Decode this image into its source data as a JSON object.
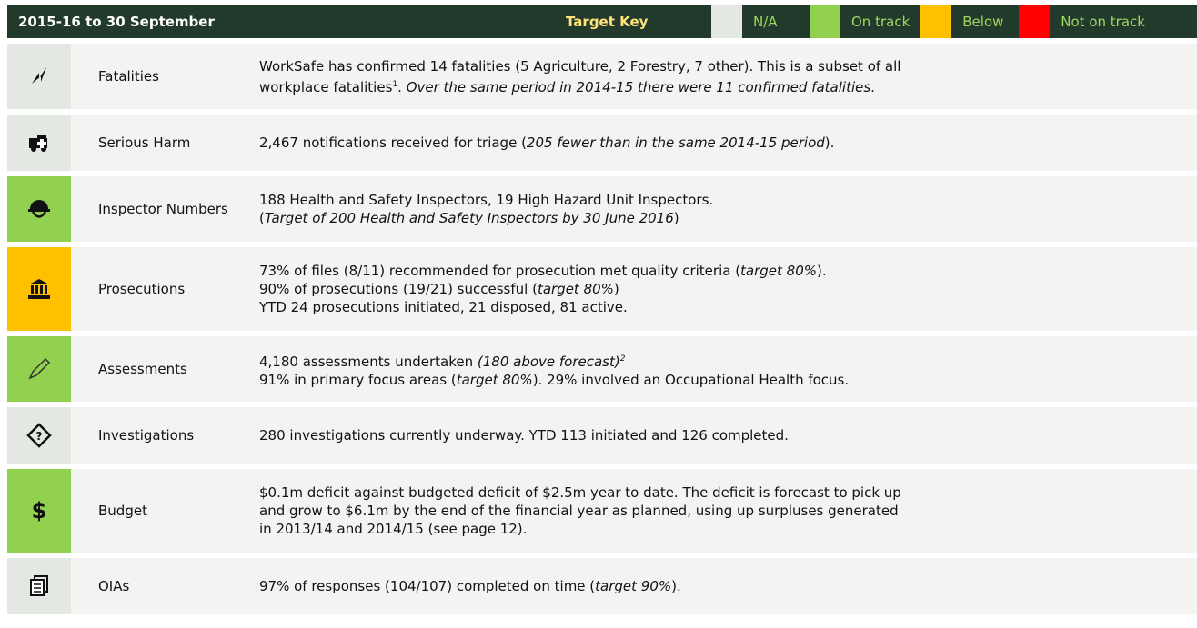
{
  "header": {
    "title": "2015-16 to 30 September",
    "key_label": "Target Key",
    "key": [
      {
        "label": "N/A",
        "color": "#e4e8e2"
      },
      {
        "label": "On track",
        "color": "#92d050"
      },
      {
        "label": "Below",
        "color": "#ffc000"
      },
      {
        "label": "Not on track",
        "color": "#ff0000"
      }
    ]
  },
  "rows": [
    {
      "label": "Fatalities",
      "color": "#e4e8e2",
      "lines": [
        [
          "WorkSafe has confirmed 14 fatalities (5 Agriculture, 2 Forestry, 7 other). This is a subset of all"
        ],
        [
          "workplace fatalities",
          {
            "text": "1",
            "sup": true
          },
          ". ",
          {
            "text": "Over the same period in 2014-15 there were 11 confirmed fatalities",
            "em": true
          },
          "."
        ]
      ]
    },
    {
      "label": "Serious Harm",
      "color": "#e4e8e2",
      "lines": [
        [
          "2,467 notifications received for triage (",
          {
            "text": "205 fewer than in the same 2014-15 period",
            "em": true
          },
          ")."
        ]
      ]
    },
    {
      "label": "Inspector Numbers",
      "color": "#92d050",
      "lines": [
        [
          "188 Health and Safety Inspectors, 19 High Hazard Unit Inspectors."
        ],
        [
          "(",
          {
            "text": "Target of 200 Health and Safety Inspectors by 30 June 2016",
            "em": true
          },
          ")"
        ]
      ]
    },
    {
      "label": "Prosecutions",
      "color": "#ffc000",
      "lines": [
        [
          "73% of files (8/11) recommended for prosecution met quality criteria (",
          {
            "text": "target 80%",
            "em": true
          },
          ")."
        ],
        [
          "90% of prosecutions (19/21) successful (",
          {
            "text": "target 80%",
            "em": true
          },
          ")"
        ],
        [
          "YTD 24 prosecutions initiated, 21 disposed, 81 active."
        ]
      ]
    },
    {
      "label": "Assessments",
      "color": "#92d050",
      "lines": [
        [
          "4,180 assessments undertaken ",
          {
            "text": "(180 above forecast)",
            "em": true
          },
          {
            "text": "2",
            "sup": true,
            "em": true
          }
        ],
        [
          "91% in primary focus areas (",
          {
            "text": "target 80%",
            "em": true
          },
          "). 29% involved an Occupational Health focus."
        ]
      ]
    },
    {
      "label": "Investigations",
      "color": "#e4e8e2",
      "lines": [
        [
          "280 investigations currently underway. YTD 113 initiated and 126 completed."
        ]
      ]
    },
    {
      "label": "Budget",
      "color": "#92d050",
      "lines": [
        [
          "$0.1m deficit against budgeted deficit of $2.5m year to date. The deficit is forecast to pick up"
        ],
        [
          "and grow to $6.1m by the end of the financial year as planned, using up surpluses generated"
        ],
        [
          "in 2013/14 and 2014/15 (see page 12)."
        ]
      ]
    },
    {
      "label": "OIAs",
      "color": "#e4e8e2",
      "lines": [
        [
          "97% of responses (104/107) completed on time (",
          {
            "text": "target 90%",
            "em": true
          },
          ")."
        ]
      ]
    }
  ]
}
